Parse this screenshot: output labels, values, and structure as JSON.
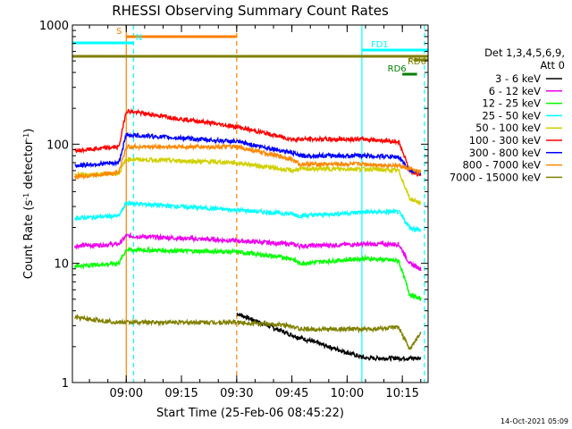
{
  "chart_data": {
    "type": "line",
    "title": "RHESSI Observing Summary Count Rates",
    "xlabel": "Start Time (25-Feb-06 08:45:22)",
    "ylabel": "Count Rate (s⁻¹ detector⁻¹)",
    "ylabel_parts": [
      "Count Rate (s",
      "-1",
      " detector",
      "-1",
      ")"
    ],
    "y_scale": "log",
    "ylim": [
      1,
      1000
    ],
    "xlim": [
      "08:45:22",
      "10:22"
    ],
    "x_ticks": [
      "09:00",
      "09:15",
      "09:30",
      "09:45",
      "10:00",
      "10:15"
    ],
    "y_ticks": [
      {
        "value": 1,
        "label": "1"
      },
      {
        "value": 10,
        "label": "10"
      },
      {
        "value": 100,
        "label": "100"
      },
      {
        "value": 1000,
        "label": "1000"
      }
    ],
    "grid": false,
    "legend_position": "right",
    "legend_header": [
      "Det 1,3,4,5,6,9,",
      "Att 0"
    ],
    "series": [
      {
        "name": "3 - 6 keV",
        "color": "#000000",
        "x": [
          "09:14",
          "09:28",
          "09:30",
          "09:45",
          "10:05",
          "10:20"
        ],
        "y": [
          null,
          null,
          3.8,
          2.5,
          1.6,
          1.6
        ]
      },
      {
        "name": "6 - 12 keV",
        "color": "#ee00ee",
        "x": [
          "08:46",
          "08:58",
          "09:00",
          "09:30",
          "09:45",
          "09:47",
          "10:05",
          "10:14",
          "10:17",
          "10:20"
        ],
        "y": [
          14,
          14.5,
          17,
          15.5,
          14.5,
          14,
          14.5,
          14.5,
          10,
          9
        ]
      },
      {
        "name": "12 - 25 keV",
        "color": "#00ff00",
        "x": [
          "08:46",
          "08:58",
          "09:00",
          "09:30",
          "09:45",
          "09:47",
          "10:05",
          "10:14",
          "10:17",
          "10:20"
        ],
        "y": [
          9.5,
          10,
          13,
          12.5,
          11,
          10,
          11,
          10.5,
          5.5,
          5
        ]
      },
      {
        "name": "25 - 50 keV",
        "color": "#00ffff",
        "x": [
          "08:46",
          "08:58",
          "09:00",
          "09:30",
          "09:45",
          "09:47",
          "10:05",
          "10:14",
          "10:17",
          "10:20"
        ],
        "y": [
          24,
          25,
          32,
          28,
          26,
          25,
          27,
          27,
          20,
          19
        ]
      },
      {
        "name": "50 - 100 keV",
        "color": "#d0d000",
        "x": [
          "08:46",
          "08:58",
          "09:00",
          "09:30",
          "09:45",
          "09:47",
          "10:05",
          "10:14",
          "10:17",
          "10:20"
        ],
        "y": [
          55,
          57,
          75,
          70,
          60,
          62,
          62,
          60,
          35,
          32
        ]
      },
      {
        "name": "100 - 300 keV",
        "color": "#ff0000",
        "x": [
          "08:46",
          "08:58",
          "09:00",
          "09:30",
          "09:45",
          "09:47",
          "10:05",
          "10:14",
          "10:17",
          "10:20"
        ],
        "y": [
          88,
          95,
          190,
          140,
          110,
          110,
          110,
          105,
          60,
          55
        ]
      },
      {
        "name": "300 - 800 keV",
        "color": "#0000ff",
        "x": [
          "08:46",
          "08:58",
          "09:00",
          "09:30",
          "09:45",
          "09:47",
          "10:05",
          "10:14",
          "10:17",
          "10:20"
        ],
        "y": [
          66,
          70,
          120,
          105,
          85,
          80,
          80,
          78,
          60,
          58
        ]
      },
      {
        "name": "800 - 7000 keV",
        "color": "#ff8800",
        "x": [
          "08:46",
          "08:58",
          "09:00",
          "09:30",
          "09:45",
          "09:47",
          "10:05",
          "10:14",
          "10:17",
          "10:20"
        ],
        "y": [
          53,
          58,
          95,
          95,
          75,
          68,
          68,
          66,
          62,
          58
        ]
      },
      {
        "name": "7000 - 15000 keV",
        "color": "#808000",
        "x": [
          "08:46",
          "08:58",
          "09:00",
          "09:30",
          "09:45",
          "09:47",
          "10:05",
          "10:14",
          "10:17",
          "10:20"
        ],
        "y": [
          3.5,
          3.2,
          3.2,
          3.2,
          3.0,
          2.8,
          2.8,
          2.9,
          1.9,
          2.6
        ]
      }
    ],
    "state_bars": [
      {
        "label": "S",
        "color": "#ff8000",
        "start": "09:00",
        "end": "09:30"
      },
      {
        "label": "N",
        "color": "#00ffff",
        "start": "08:45:22",
        "end": "09:02"
      },
      {
        "label": "FD1",
        "color": "#00ffff",
        "start": "10:04",
        "end": "10:22"
      },
      {
        "label": "FD2",
        "color": "#808000",
        "start": "08:45:22",
        "end": "10:22"
      },
      {
        "label": "RD6",
        "color": "#808000",
        "start": "10:18",
        "end": "10:22"
      },
      {
        "label": "RD6",
        "color": "#008000",
        "start": "10:15",
        "end": "10:19"
      }
    ],
    "vertical_markers": [
      {
        "time": "09:00",
        "color": "#ff8000",
        "style": "solid"
      },
      {
        "time": "09:02",
        "color": "#00ffff",
        "style": "dashed"
      },
      {
        "time": "09:30",
        "color": "#ff8000",
        "style": "dashed"
      },
      {
        "time": "10:04",
        "color": "#00ffff",
        "style": "solid"
      },
      {
        "time": "10:21",
        "color": "#00ffff",
        "style": "dashed"
      }
    ]
  },
  "footer": {
    "timestamp": "14-Oct-2021 05:09"
  }
}
